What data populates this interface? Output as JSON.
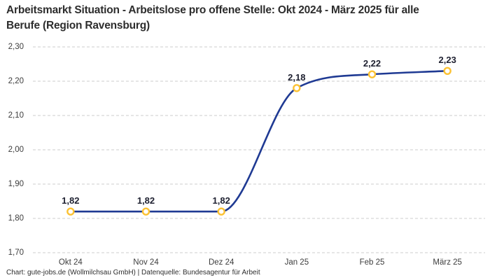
{
  "header": {
    "title_line1": "Arbeitsmarkt Situation - Arbeitslose pro offene Stelle: Okt 2024 - März 2025 für alle",
    "title_line2": "Berufe (Region Ravensburg)"
  },
  "footer": {
    "credit": "Chart: gute-jobs.de (Wollmilchsau GmbH) | Datenquelle: Bundesagentur für Arbeit"
  },
  "chart_data": {
    "type": "line",
    "title": "Arbeitsmarkt Situation - Arbeitslose pro offene Stelle: Okt 2024 - März 2025 für alle Berufe (Region Ravensburg)",
    "categories": [
      "Okt 24",
      "Nov 24",
      "Dez 24",
      "Jan 25",
      "Feb 25",
      "März 25"
    ],
    "values": [
      1.82,
      1.82,
      1.82,
      2.18,
      2.22,
      2.23
    ],
    "value_labels": [
      "1,82",
      "1,82",
      "1,82",
      "2,18",
      "2,22",
      "2,23"
    ],
    "yticks": [
      1.7,
      1.8,
      1.9,
      2.0,
      2.1,
      2.2,
      2.3
    ],
    "ytick_labels": [
      "1,70",
      "1,80",
      "1,90",
      "2,00",
      "2,10",
      "2,20",
      "2,30"
    ],
    "ylim": [
      1.7,
      2.3
    ],
    "xlabel": "",
    "ylabel": "",
    "legend_position": "none",
    "grid": "horizontal-dashed",
    "curve": "monotone",
    "colors": {
      "line": "#1f3a93",
      "marker_ring": "#FCC233",
      "marker_fill": "#ffffff",
      "grid": "#cccccc"
    }
  }
}
